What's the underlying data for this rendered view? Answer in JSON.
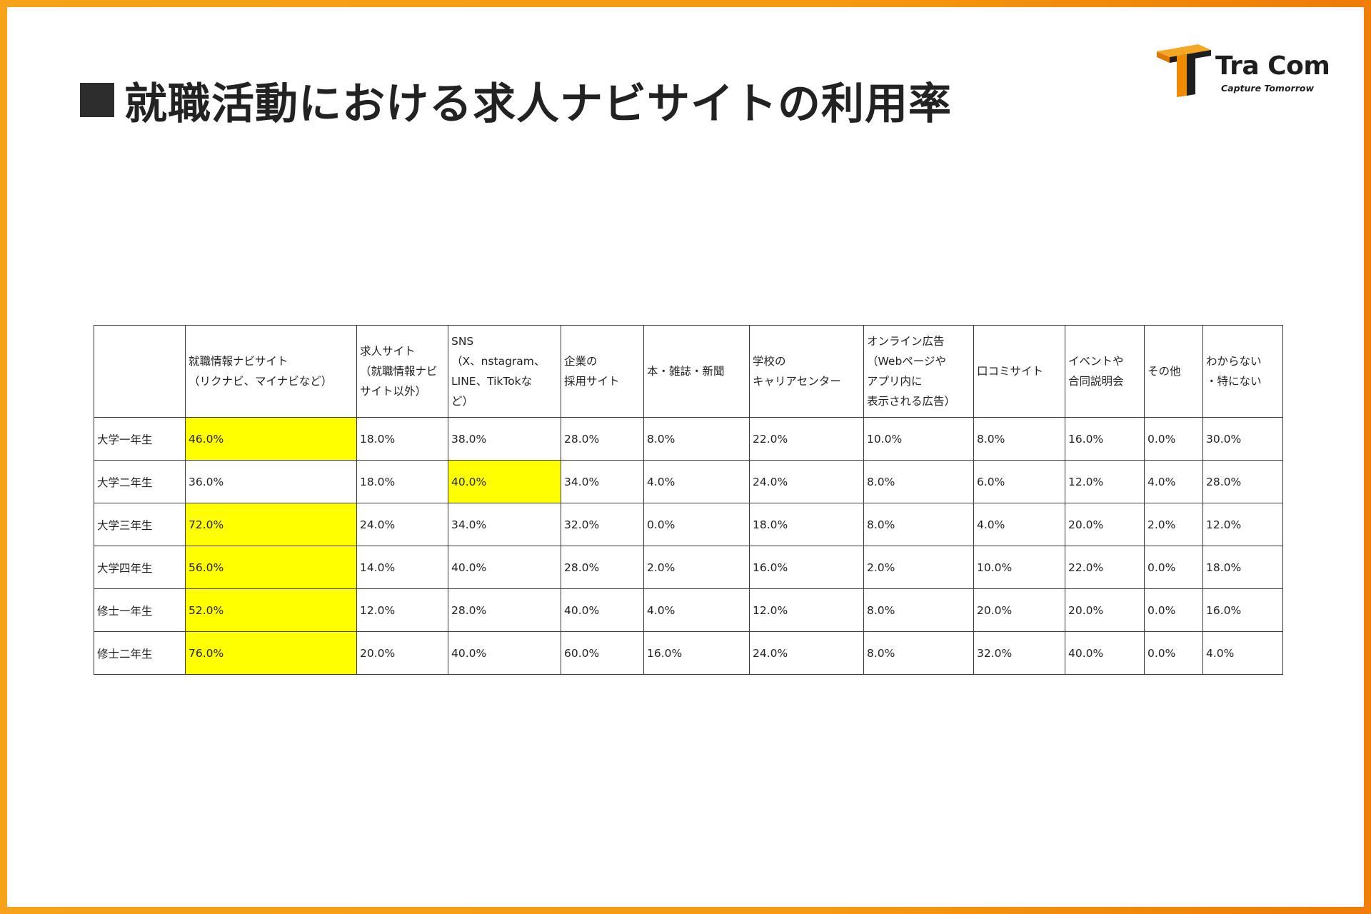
{
  "title": "就職活動における求人ナビサイトの利用率",
  "logo": {
    "name": "Tra Com",
    "tagline": "Capture Tomorrow",
    "icon": "t-beam-logo-icon"
  },
  "colors": {
    "frame": "#f7a21a",
    "highlight": "#ffff00",
    "logo_orange": "#f08a00",
    "title_text": "#222222"
  },
  "chart_data": {
    "type": "table",
    "columns": [
      "就職情報ナビサイト\n（リクナビ、マイナビなど）",
      "求人サイト\n（就職情報ナビ\nサイト以外）",
      "SNS\n（X、nstagram、\nLINE、TikTokな\nど）",
      "企業の\n採用サイト",
      "本・雑誌・新聞",
      "学校の\nキャリアセンター",
      "オンライン広告\n（Webページや\nアプリ内に\n表示される広告）",
      "口コミサイト",
      "イベントや\n合同説明会",
      "その他",
      "わからない\n・特にない"
    ],
    "rows": [
      {
        "label": "大学一年生",
        "values": [
          "46.0%",
          "18.0%",
          "38.0%",
          "28.0%",
          "8.0%",
          "22.0%",
          "10.0%",
          "8.0%",
          "16.0%",
          "0.0%",
          "30.0%"
        ],
        "highlight": [
          0
        ]
      },
      {
        "label": "大学二年生",
        "values": [
          "36.0%",
          "18.0%",
          "40.0%",
          "34.0%",
          "4.0%",
          "24.0%",
          "8.0%",
          "6.0%",
          "12.0%",
          "4.0%",
          "28.0%"
        ],
        "highlight": [
          2
        ]
      },
      {
        "label": "大学三年生",
        "values": [
          "72.0%",
          "24.0%",
          "34.0%",
          "32.0%",
          "0.0%",
          "18.0%",
          "8.0%",
          "4.0%",
          "20.0%",
          "2.0%",
          "12.0%"
        ],
        "highlight": [
          0
        ]
      },
      {
        "label": "大学四年生",
        "values": [
          "56.0%",
          "14.0%",
          "40.0%",
          "28.0%",
          "2.0%",
          "16.0%",
          "2.0%",
          "10.0%",
          "22.0%",
          "0.0%",
          "18.0%"
        ],
        "highlight": [
          0
        ]
      },
      {
        "label": "修士一年生",
        "values": [
          "52.0%",
          "12.0%",
          "28.0%",
          "40.0%",
          "4.0%",
          "12.0%",
          "8.0%",
          "20.0%",
          "20.0%",
          "0.0%",
          "16.0%"
        ],
        "highlight": [
          0
        ]
      },
      {
        "label": "修士二年生",
        "values": [
          "76.0%",
          "20.0%",
          "40.0%",
          "60.0%",
          "16.0%",
          "24.0%",
          "8.0%",
          "32.0%",
          "40.0%",
          "0.0%",
          "4.0%"
        ],
        "highlight": [
          0
        ]
      }
    ]
  }
}
